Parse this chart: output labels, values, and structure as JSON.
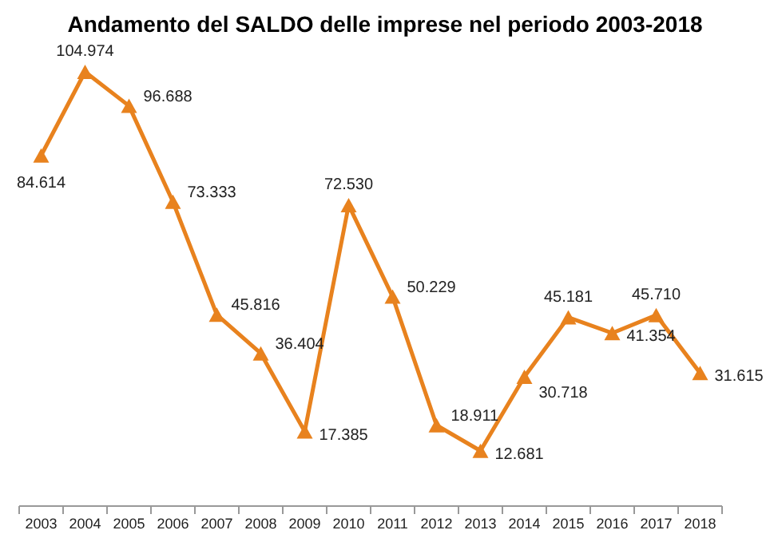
{
  "chart_data": {
    "type": "line",
    "title": "Andamento del SALDO delle imprese nel periodo 2003-2018",
    "categories": [
      "2003",
      "2004",
      "2005",
      "2006",
      "2007",
      "2008",
      "2009",
      "2010",
      "2011",
      "2012",
      "2013",
      "2014",
      "2015",
      "2016",
      "2017",
      "2018"
    ],
    "series": [
      {
        "color": "#e8821e",
        "values": [
          84614,
          104974,
          96688,
          73333,
          45816,
          36404,
          17385,
          72530,
          50229,
          18911,
          12681,
          30718,
          45181,
          41354,
          45710,
          31615
        ],
        "value_labels": [
          "84.614",
          "104.974",
          "96.688",
          "73.333",
          "45.816",
          "36.404",
          "17.385",
          "72.530",
          "50.229",
          "18.911",
          "12.681",
          "30.718",
          "45.181",
          "41.354",
          "45.710",
          "31.615"
        ]
      }
    ],
    "marker": "triangle"
  }
}
